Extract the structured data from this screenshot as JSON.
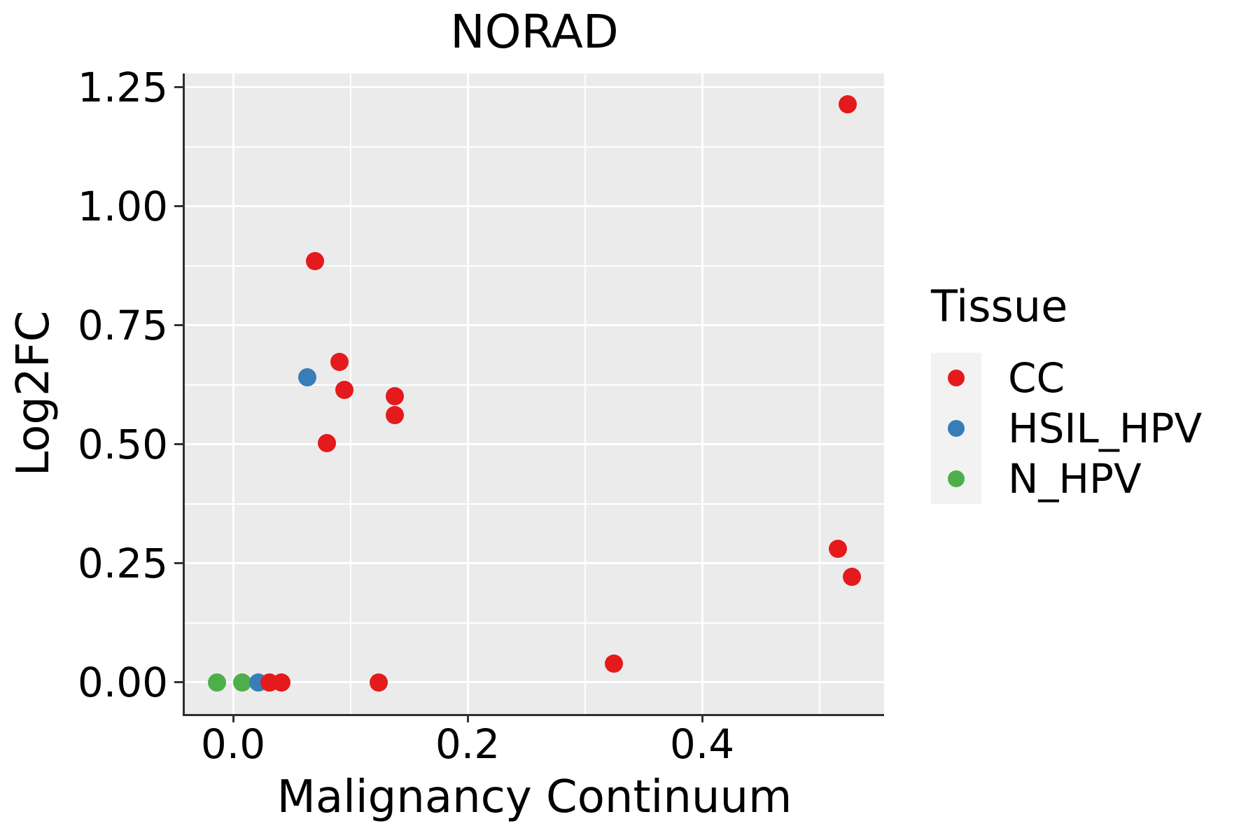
{
  "title": "NORAD",
  "axes": {
    "x_label": "Malignancy Continuum",
    "y_label": "Log2FC"
  },
  "legend": {
    "title": "Tissue",
    "entries": [
      {
        "label": "CC",
        "color": "#e41a1c"
      },
      {
        "label": "HSIL_HPV",
        "color": "#377eb8"
      },
      {
        "label": "N_HPV",
        "color": "#4daf4a"
      }
    ]
  },
  "style_colors": {
    "panel_background": "#ebebeb",
    "gridline": "#ffffff",
    "legend_key_background": "#f2f2f2",
    "axis_line": "#2e2e2e",
    "tick_mark": "#333333",
    "text": "#000000"
  },
  "chart_data": {
    "type": "scatter",
    "title": "NORAD",
    "xlabel": "Malignancy Continuum",
    "ylabel": "Log2FC",
    "xlim": [
      -0.0412,
      0.5552
    ],
    "ylim": [
      -0.0662,
      1.2794
    ],
    "grid": true,
    "legend_position": "right",
    "x_ticks": [
      {
        "value": 0.0,
        "label": "0.0"
      },
      {
        "value": 0.2,
        "label": "0.2"
      },
      {
        "value": 0.4,
        "label": "0.4"
      }
    ],
    "y_ticks": [
      {
        "value": 0.0,
        "label": "0.00"
      },
      {
        "value": 0.25,
        "label": "0.25"
      },
      {
        "value": 0.5,
        "label": "0.50"
      },
      {
        "value": 0.75,
        "label": "0.75"
      },
      {
        "value": 1.0,
        "label": "1.00"
      },
      {
        "value": 1.25,
        "label": "1.25"
      }
    ],
    "x_minor_ticks": [
      0.1,
      0.3,
      0.5
    ],
    "y_minor_ticks": [
      0.125,
      0.375,
      0.625,
      0.875,
      1.125
    ],
    "series": [
      {
        "name": "CC",
        "color": "#e41a1c",
        "points": [
          [
            0.031,
            0.0
          ],
          [
            0.041,
            0.0
          ],
          [
            0.124,
            0.0
          ],
          [
            0.325,
            0.04
          ],
          [
            0.08,
            0.503
          ],
          [
            0.138,
            0.562
          ],
          [
            0.138,
            0.601
          ],
          [
            0.095,
            0.615
          ],
          [
            0.091,
            0.674
          ],
          [
            0.07,
            0.885
          ],
          [
            0.528,
            0.222
          ],
          [
            0.516,
            0.281
          ],
          [
            0.524,
            1.215
          ]
        ]
      },
      {
        "name": "HSIL_HPV",
        "color": "#377eb8",
        "points": [
          [
            0.0215,
            0.0
          ],
          [
            0.063,
            0.641
          ]
        ]
      },
      {
        "name": "N_HPV",
        "color": "#4daf4a",
        "points": [
          [
            -0.014,
            0.0
          ],
          [
            0.008,
            0.0
          ]
        ]
      }
    ]
  }
}
